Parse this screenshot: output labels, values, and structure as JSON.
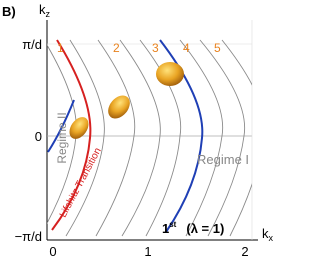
{
  "panel_label": "B)",
  "axes": {
    "y_label": "k",
    "y_sub": "z",
    "x_label": "k",
    "x_sub": "x",
    "y_ticks": [
      "π/d",
      "0",
      "−π/d"
    ],
    "x_ticks": [
      "0",
      "1",
      "2"
    ]
  },
  "band_labels": [
    "1",
    "2",
    "3",
    "4",
    "5"
  ],
  "annotations": {
    "regime_2": "Regime II",
    "regime_1": "Regime I",
    "transition": "Lifshitz Transition",
    "order": "1",
    "order_sup": "st",
    "lambda": "(λ = 1)"
  }
}
